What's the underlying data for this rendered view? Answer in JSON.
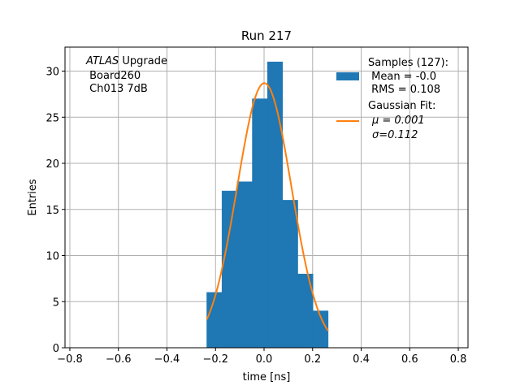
{
  "chart_data": {
    "type": "histogram",
    "title": "Run 217",
    "xlabel": "time [ns]",
    "ylabel": "Entries",
    "xlim": [
      -0.82,
      0.84
    ],
    "ylim": [
      0,
      32.6
    ],
    "grid": true,
    "x_ticks": [
      -0.8,
      -0.6,
      -0.4,
      -0.2,
      0.0,
      0.2,
      0.4,
      0.6,
      0.8
    ],
    "x_tick_labels": [
      "−0.8",
      "−0.6",
      "−0.4",
      "−0.2",
      "0.0",
      "0.2",
      "0.4",
      "0.6",
      "0.8"
    ],
    "y_ticks": [
      0,
      5,
      10,
      15,
      20,
      25,
      30
    ],
    "y_tick_labels": [
      "0",
      "5",
      "10",
      "15",
      "20",
      "25",
      "30"
    ],
    "bin_edges": [
      -0.236,
      -0.1735,
      -0.111,
      -0.0485,
      0.014,
      0.0765,
      0.139,
      0.2015,
      0.264
    ],
    "bin_values": [
      6,
      17,
      18,
      27,
      31,
      16,
      8,
      4
    ],
    "bar_color": "#1f77b4",
    "fit": {
      "name": "Gaussian Fit",
      "mu": 0.001,
      "sigma": 0.112,
      "amplitude": 28.7,
      "x_range": [
        -0.236,
        0.264
      ],
      "color": "#ff7f0e"
    },
    "annotations": {
      "experiment_italic": "ATLAS",
      "experiment_rest": " Upgrade",
      "line2": " Board260",
      "line3": " Ch013 7dB"
    },
    "legend": {
      "position": "top-right",
      "samples_lines": [
        "Samples (127):",
        " Mean = -0.0",
        " RMS = 0.108"
      ],
      "fit_lines": [
        "Gaussian Fit:",
        "μ = 0.001",
        "σ=0.112"
      ]
    }
  }
}
